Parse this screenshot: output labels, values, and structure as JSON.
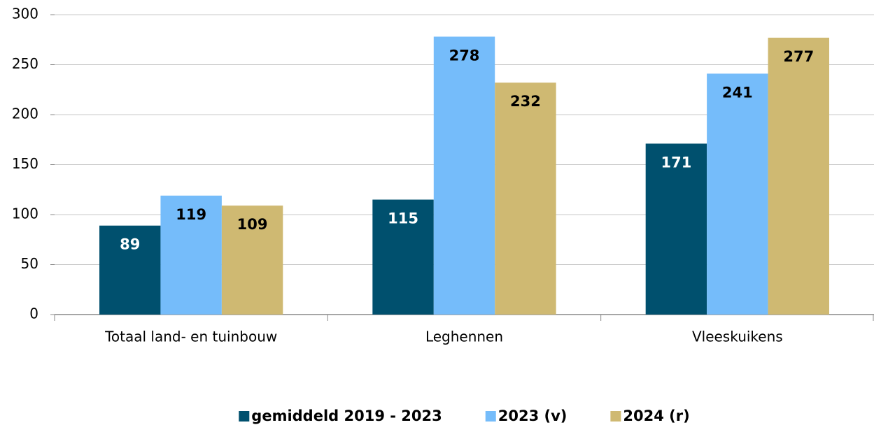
{
  "chart_data": {
    "type": "bar",
    "categories": [
      "Totaal land- en tuinbouw",
      "Leghennen",
      "Vleeskuikens"
    ],
    "series": [
      {
        "name": "gemiddeld 2019 - 2023",
        "color": "#00506e",
        "label_color": "#ffffff",
        "values": [
          89,
          115,
          171
        ]
      },
      {
        "name": "2023 (v)",
        "color": "#75bcfa",
        "label_color": "#000000",
        "values": [
          119,
          278,
          241
        ]
      },
      {
        "name": "2024 (r)",
        "color": "#cfb972",
        "label_color": "#000000",
        "values": [
          109,
          232,
          277
        ]
      }
    ],
    "ylim": [
      0,
      300
    ],
    "yticks": [
      0,
      50,
      100,
      150,
      200,
      250,
      300
    ],
    "grid": true,
    "legend": "bottom"
  }
}
